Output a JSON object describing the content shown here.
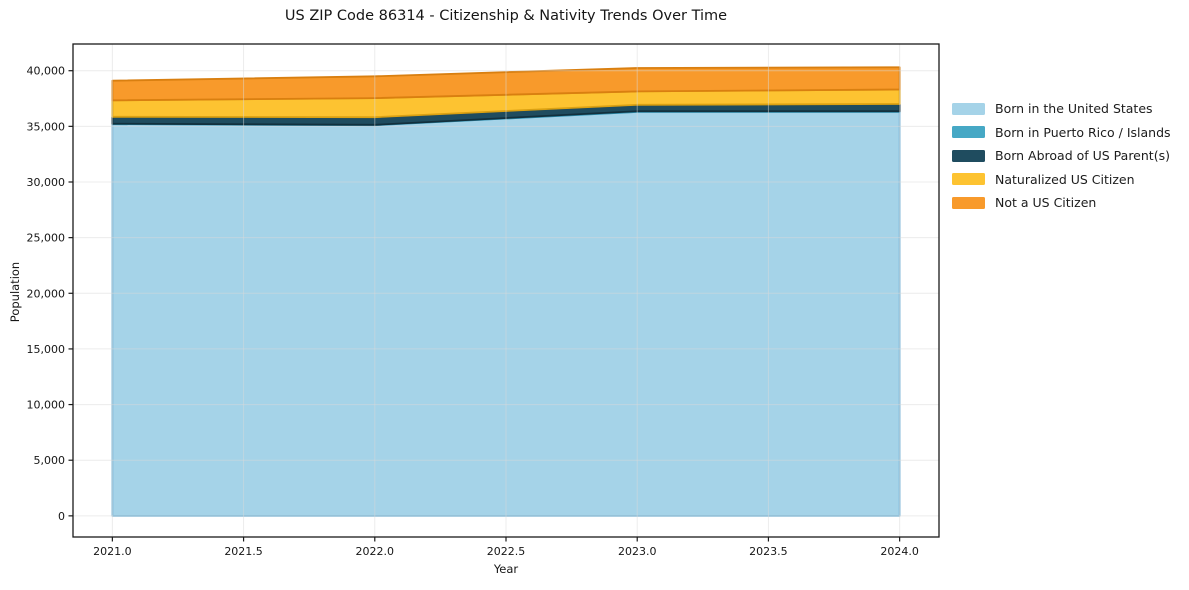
{
  "chart_data": {
    "type": "area",
    "stacked": true,
    "title": "US ZIP Code 86314 - Citizenship & Nativity Trends Over Time",
    "xlabel": "Year",
    "ylabel": "Population",
    "x": [
      2021,
      2022,
      2023,
      2024
    ],
    "series": [
      {
        "id": "born-us",
        "name": "Born in the United States",
        "color": "#a5d3e8",
        "edge_color": "#79b7d9",
        "values": [
          35200,
          35100,
          36300,
          36300
        ]
      },
      {
        "id": "born-pr-islands",
        "name": "Born in Puerto Rico / Islands",
        "color": "#46a8c5",
        "edge_color": "#2d8fae",
        "values": [
          40,
          40,
          60,
          60
        ]
      },
      {
        "id": "born-abroad",
        "name": "Born Abroad of US Parent(s)",
        "color": "#1f4c5f",
        "edge_color": "#12303d",
        "values": [
          620,
          680,
          580,
          650
        ]
      },
      {
        "id": "naturalized",
        "name": "Naturalized US Citizen",
        "color": "#fdc331",
        "edge_color": "#dba112",
        "values": [
          1480,
          1720,
          1200,
          1300
        ]
      },
      {
        "id": "not-citizen",
        "name": "Not a US Citizen",
        "color": "#f89a2b",
        "edge_color": "#d97f10",
        "values": [
          1760,
          1960,
          2100,
          2000
        ]
      }
    ],
    "totals": [
      39100,
      39500,
      40240,
      40310
    ],
    "xlim": [
      2020.85,
      2024.15
    ],
    "ylim": [
      -1900,
      42400
    ],
    "xticks": {
      "values": [
        2021.0,
        2021.5,
        2022.0,
        2022.5,
        2023.0,
        2023.5,
        2024.0
      ],
      "labels": [
        "2021.0",
        "2021.5",
        "2022.0",
        "2022.5",
        "2023.0",
        "2023.5",
        "2024.0"
      ]
    },
    "yticks": {
      "values": [
        0,
        5000,
        10000,
        15000,
        20000,
        25000,
        30000,
        35000,
        40000
      ],
      "labels": [
        "0",
        "5,000",
        "10,000",
        "15,000",
        "20,000",
        "25,000",
        "30,000",
        "35,000",
        "40,000"
      ]
    },
    "grid": true,
    "legend_position": "right"
  }
}
